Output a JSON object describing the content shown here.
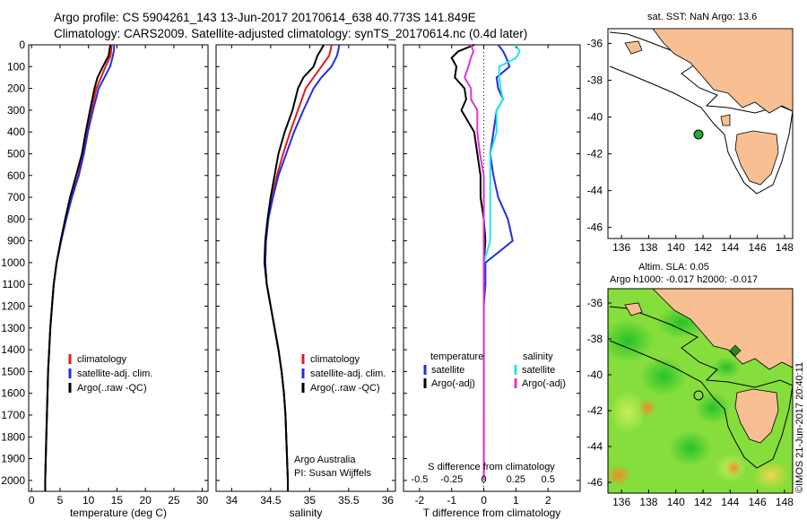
{
  "header": {
    "line1": "Argo profile: CS 5904261_143 13-Jun-2017 20170614_638 40.773S 141.849E",
    "line2": "Climatology: CARS2009. Satellite-adjusted climatology: synTS_20170614.nc (0.4d later)"
  },
  "colors": {
    "climatology": "#e41a1c",
    "satellite": "#1f2fe0",
    "argo": "#000000",
    "s_satellite": "#22e5e5",
    "s_argo": "#e033d6",
    "land": "#f7bf92",
    "marker": "#22aa33"
  },
  "chart_data": [
    {
      "type": "line",
      "panel": "temperature",
      "xlabel": "temperature (deg C)",
      "ylabel": "",
      "xlim": [
        -0.5,
        31
      ],
      "ylim": [
        2050,
        0
      ],
      "xticks": [
        0,
        5,
        10,
        15,
        20,
        25,
        30
      ],
      "yticks": [
        0,
        100,
        200,
        300,
        400,
        500,
        600,
        700,
        800,
        900,
        1000,
        1100,
        1200,
        1300,
        1400,
        1500,
        1600,
        1700,
        1800,
        1900,
        2000
      ],
      "legend": [
        "climatology",
        "satellite-adj. clim.",
        "Argo(..raw -QC)"
      ],
      "depth": [
        0,
        20,
        50,
        100,
        150,
        200,
        300,
        400,
        500,
        600,
        700,
        800,
        900,
        1000,
        1100,
        1200,
        1300,
        1400,
        1500,
        1600,
        1700,
        1800,
        1900,
        2000,
        2050
      ],
      "series": [
        {
          "name": "climatology",
          "key": "climatology",
          "values": [
            14.1,
            14.0,
            13.9,
            13.0,
            12.2,
            11.4,
            10.5,
            9.8,
            9.0,
            8.2,
            7.0,
            6.0,
            5.2,
            4.4,
            3.9,
            3.6,
            3.3,
            3.1,
            2.9,
            2.8,
            2.7,
            2.6,
            2.5,
            2.4,
            2.4
          ]
        },
        {
          "name": "satellite-adj. clim.",
          "key": "satellite",
          "values": [
            14.5,
            14.5,
            14.3,
            13.8,
            12.8,
            11.8,
            10.8,
            9.9,
            9.2,
            8.3,
            7.1,
            6.1,
            5.2,
            4.4,
            3.9,
            3.6,
            3.3,
            3.1,
            2.9,
            2.8,
            2.7,
            2.6,
            2.5,
            2.4,
            2.4
          ]
        },
        {
          "name": "Argo(..raw -QC)",
          "key": "argo",
          "values": [
            13.8,
            13.7,
            13.6,
            12.6,
            11.6,
            11.0,
            10.2,
            9.5,
            8.9,
            7.9,
            6.8,
            5.9,
            5.1,
            4.4,
            3.9,
            3.6,
            3.3,
            3.1,
            2.9,
            2.8,
            2.7,
            2.6,
            2.5,
            2.4,
            2.4
          ]
        }
      ]
    },
    {
      "type": "line",
      "panel": "salinity",
      "xlabel": "salinity",
      "xlim": [
        33.8,
        36.1
      ],
      "ylim": [
        2050,
        0
      ],
      "xticks": [
        34,
        34.5,
        35,
        35.5,
        36
      ],
      "xticklabels": [
        "34",
        "34.5",
        "35",
        "35.5",
        "36"
      ],
      "legend": [
        "climatology",
        "satellite-adj. clim.",
        "Argo(..raw -QC)"
      ],
      "annotation": [
        "Argo Australia",
        "PI: Susan Wijffels"
      ],
      "depth": [
        0,
        20,
        50,
        100,
        150,
        200,
        300,
        400,
        500,
        600,
        700,
        800,
        900,
        1000,
        1100,
        1200,
        1300,
        1400,
        1500,
        1600,
        1700,
        1800,
        1900,
        2000,
        2050
      ],
      "series": [
        {
          "name": "climatology",
          "key": "climatology",
          "values": [
            35.28,
            35.27,
            35.25,
            35.15,
            35.05,
            34.95,
            34.85,
            34.75,
            34.66,
            34.58,
            34.52,
            34.47,
            34.44,
            34.43,
            34.45,
            34.5,
            34.55,
            34.6,
            34.64,
            34.67,
            34.69,
            34.7,
            34.71,
            34.72,
            34.72
          ]
        },
        {
          "name": "satellite-adj. clim.",
          "key": "satellite",
          "values": [
            35.38,
            35.37,
            35.35,
            35.28,
            35.15,
            35.05,
            34.92,
            34.8,
            34.7,
            34.6,
            34.53,
            34.47,
            34.44,
            34.43,
            34.45,
            34.5,
            34.55,
            34.6,
            34.64,
            34.67,
            34.69,
            34.7,
            34.71,
            34.72,
            34.72
          ]
        },
        {
          "name": "Argo(..raw -QC)",
          "key": "argo",
          "values": [
            35.18,
            35.15,
            35.1,
            35.05,
            34.92,
            34.85,
            34.78,
            34.68,
            34.6,
            34.55,
            34.5,
            34.46,
            34.43,
            34.42,
            34.45,
            34.5,
            34.55,
            34.6,
            34.64,
            34.67,
            34.69,
            34.7,
            34.71,
            34.72,
            34.72
          ]
        }
      ]
    },
    {
      "type": "line",
      "panel": "difference",
      "xlabel": "T difference from climatology",
      "xlim": [
        -2.5,
        3
      ],
      "ylim": [
        2050,
        0
      ],
      "xticks": [
        -2,
        -1,
        0,
        1,
        2
      ],
      "top_label": "S difference from climatology",
      "s_ticks": [
        "-0.5",
        "-0.25",
        "0",
        "0.25",
        "0.5"
      ],
      "legend_headers": [
        "temperature",
        "salinity"
      ],
      "legend": [
        "satellite",
        "Argo(-adj)",
        "satellite",
        "Argo(-adj)"
      ],
      "depth": [
        0,
        30,
        60,
        100,
        150,
        200,
        250,
        300,
        400,
        500,
        600,
        700,
        800,
        900,
        1000,
        1100,
        1200,
        1400,
        1600,
        1800,
        2000
      ],
      "series": [
        {
          "name": "satellite",
          "variable": "temperature",
          "key": "satellite",
          "values": [
            0.45,
            0.6,
            0.7,
            0.8,
            0.4,
            0.45,
            0.6,
            0.4,
            0.3,
            0.2,
            0.3,
            0.45,
            0.75,
            0.9,
            0.05,
            0.05,
            0.0,
            0.0,
            0.0,
            0.0,
            0.0
          ]
        },
        {
          "name": "Argo(-adj)",
          "variable": "temperature",
          "key": "argo",
          "values": [
            -0.3,
            -0.8,
            -1.0,
            -0.85,
            -0.9,
            -0.6,
            -0.55,
            -0.7,
            -0.3,
            -0.2,
            -0.1,
            -0.1,
            0.0,
            0.05,
            0.0,
            0.0,
            0.0,
            0.0,
            0.0,
            0.0,
            0.0
          ]
        },
        {
          "name": "satellite",
          "variable": "salinity",
          "key": "s_satellite",
          "values": [
            0.25,
            0.28,
            0.25,
            0.12,
            0.12,
            0.13,
            0.15,
            0.1,
            0.1,
            0.05,
            0.05,
            0.05,
            0.05,
            0.05,
            0.0,
            0.0,
            0.0,
            0.0,
            0.0,
            0.0,
            0.0
          ]
        },
        {
          "name": "Argo(-adj)",
          "variable": "salinity",
          "key": "s_argo",
          "values": [
            -0.1,
            -0.08,
            -0.1,
            -0.12,
            -0.15,
            -0.1,
            -0.1,
            -0.05,
            -0.05,
            -0.03,
            0.0,
            0.0,
            0.0,
            0.0,
            0.0,
            0.0,
            0.0,
            0.0,
            0.0,
            0.0,
            0.0
          ]
        }
      ]
    }
  ],
  "maps": {
    "sst": {
      "title": "sat. SST: NaN Argo: 13.6",
      "xticks": [
        "136",
        "138",
        "140",
        "142",
        "144",
        "146",
        "148"
      ],
      "yticks": [
        "-36",
        "-38",
        "-40",
        "-42",
        "-44",
        "-46"
      ],
      "marker": [
        141.85,
        -40.77
      ]
    },
    "sla": {
      "title1": "Altim. SLA: 0.05",
      "title2": "Argo h1000: -0.017 h2000: -0.017",
      "xticks": [
        "136",
        "138",
        "140",
        "142",
        "144",
        "146",
        "148"
      ],
      "yticks": [
        "-36",
        "-38",
        "-40",
        "-42",
        "-44",
        "-46"
      ],
      "marker": [
        141.85,
        -40.77
      ],
      "credit": "©IMOS 21-Jun-2017 20:40:11"
    }
  }
}
